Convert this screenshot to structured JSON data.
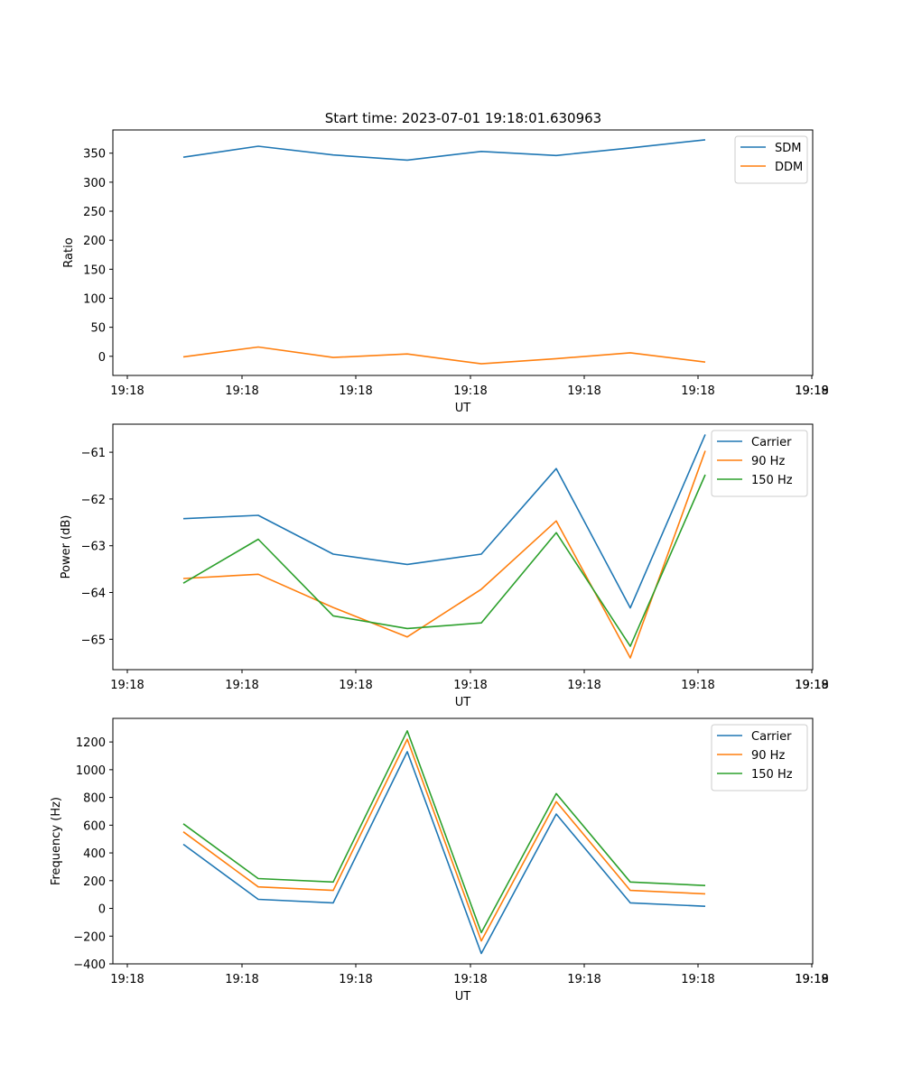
{
  "figure_title": "Start time: 2023-07-01 19:18:01.630963",
  "colors": {
    "c0": "#1f77b4",
    "c1": "#ff7f0e",
    "c2": "#2ca02c"
  },
  "chart_data": [
    {
      "type": "line",
      "title": "Start time: 2023-07-01 19:18:01.630963",
      "xlabel": "UT",
      "ylabel": "Ratio",
      "x_ticks": [
        "19:18",
        "19:18",
        "19:18",
        "19:18",
        "19:18",
        "19:18",
        "19:18",
        "19:19"
      ],
      "y_ticks": [
        "0",
        "50",
        "100",
        "150",
        "200",
        "250",
        "300",
        "350"
      ],
      "y_tick_values": [
        0,
        50,
        100,
        150,
        200,
        250,
        300,
        350
      ],
      "ylim": [
        -33,
        390
      ],
      "legend": "top-right",
      "series": [
        {
          "name": "SDM",
          "values": [
            343,
            362,
            347,
            338,
            353,
            346,
            359,
            373
          ]
        },
        {
          "name": "DDM",
          "values": [
            -1,
            16,
            -2,
            4,
            -13,
            -4,
            6,
            -10
          ]
        }
      ]
    },
    {
      "type": "line",
      "title": "",
      "xlabel": "UT",
      "ylabel": "Power (dB)",
      "x_ticks": [
        "19:18",
        "19:18",
        "19:18",
        "19:18",
        "19:18",
        "19:18",
        "19:18",
        "19:19"
      ],
      "y_ticks": [
        "−65",
        "−64",
        "−63",
        "−62",
        "−61"
      ],
      "y_tick_values": [
        -65,
        -64,
        -63,
        -62,
        -61
      ],
      "ylim": [
        -65.65,
        -60.4
      ],
      "legend": "top-right",
      "series": [
        {
          "name": "Carrier",
          "values": [
            -62.42,
            -62.35,
            -63.18,
            -63.4,
            -63.18,
            -61.35,
            -64.33,
            -60.62
          ]
        },
        {
          "name": "90 Hz",
          "values": [
            -63.7,
            -63.61,
            -64.32,
            -64.95,
            -63.93,
            -62.47,
            -65.4,
            -60.97
          ]
        },
        {
          "name": "150 Hz",
          "values": [
            -63.8,
            -62.86,
            -64.5,
            -64.77,
            -64.65,
            -62.72,
            -65.15,
            -61.48
          ]
        }
      ]
    },
    {
      "type": "line",
      "title": "",
      "xlabel": "UT",
      "ylabel": "Frequency (Hz)",
      "x_ticks": [
        "19:18",
        "19:18",
        "19:18",
        "19:18",
        "19:18",
        "19:18",
        "19:18",
        "19:19"
      ],
      "y_ticks": [
        "−400",
        "−200",
        "0",
        "200",
        "400",
        "600",
        "800",
        "1000",
        "1200"
      ],
      "y_tick_values": [
        -400,
        -200,
        0,
        200,
        400,
        600,
        800,
        1000,
        1200
      ],
      "ylim": [
        -400,
        1370
      ],
      "legend": "top-right",
      "series": [
        {
          "name": "Carrier",
          "values": [
            462,
            65,
            40,
            1130,
            -325,
            680,
            40,
            15
          ]
        },
        {
          "name": "90 Hz",
          "values": [
            552,
            155,
            130,
            1220,
            -235,
            770,
            130,
            105
          ]
        },
        {
          "name": "150 Hz",
          "values": [
            610,
            215,
            190,
            1280,
            -175,
            828,
            190,
            165
          ]
        }
      ]
    }
  ]
}
